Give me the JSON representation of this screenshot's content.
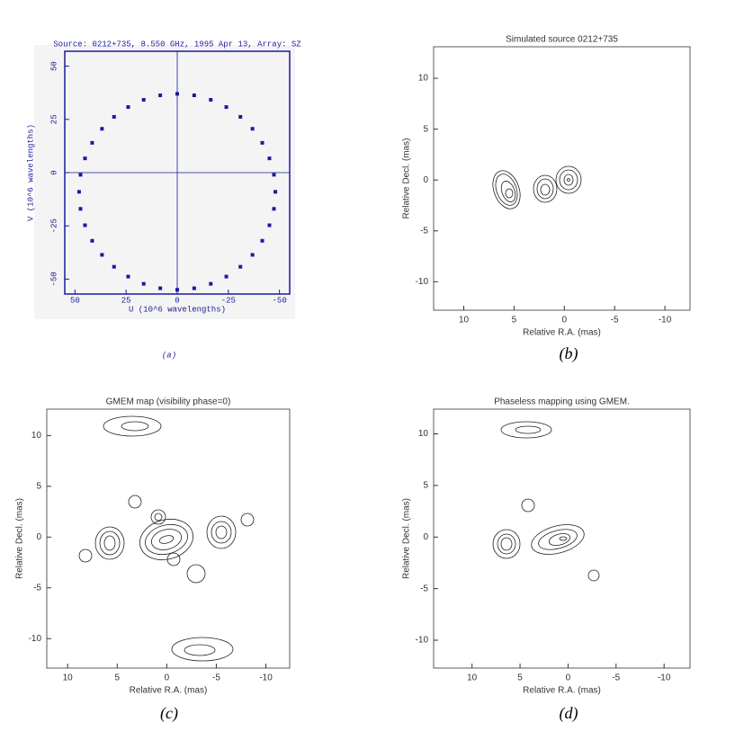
{
  "chart_data": [
    {
      "type": "scatter",
      "title": "Source: 0212+735, 8.550 GHz, 1995 Apr 13, Array: SZ",
      "x_label": "U (10^6 wavelengths)",
      "y_label": "V (10^6 wavelengths)",
      "caption": "(a)",
      "color": "#1a1aa0",
      "xlim": [
        55,
        -55
      ],
      "ylim": [
        -57,
        57
      ],
      "xticks": [
        50,
        25,
        0,
        -25,
        -50
      ],
      "yticks": [
        -50,
        -25,
        0,
        25,
        50
      ],
      "x": [
        48,
        47.3,
        45.1,
        41.6,
        36.8,
        30.9,
        24,
        16.4,
        8.3,
        0,
        -8.3,
        -16.4,
        -24,
        -30.9,
        -36.8,
        -41.6,
        -45.1,
        -47.3,
        -48,
        -47.3,
        -45.1,
        -41.6,
        -36.8,
        -30.9,
        -24,
        -16.4,
        -8.3,
        0,
        8.3,
        16.4,
        24,
        30.9,
        36.8,
        41.6,
        45.1,
        47.3
      ],
      "y": [
        -9,
        -1,
        6.7,
        14,
        20.6,
        26.2,
        30.8,
        34.2,
        36.3,
        37,
        36.3,
        34.2,
        30.8,
        26.2,
        20.6,
        14,
        6.7,
        -1,
        -9,
        -17,
        -24.7,
        -32,
        -38.6,
        -44.2,
        -48.8,
        -52.2,
        -54.3,
        -55,
        -54.3,
        -52.2,
        -48.8,
        -44.2,
        -38.6,
        -32,
        -24.7,
        -17
      ]
    },
    {
      "type": "contour",
      "title": "Simulated source 0212+735",
      "x_label": "Relative R.A. (mas)",
      "y_label": "Relative Decl. (mas)",
      "caption": "(b)",
      "xlim": [
        13,
        -12.5
      ],
      "ylim": [
        -12.8,
        13.1
      ],
      "xticks": [
        10,
        5,
        0,
        -5,
        -10
      ],
      "yticks": [
        -10,
        -5,
        0,
        5,
        10
      ]
    },
    {
      "type": "contour",
      "title": "GMEM map (visibility phase=0)",
      "x_label": "Relative R.A. (mas)",
      "y_label": "Relative Decl. (mas)",
      "caption": "(c)",
      "xlim": [
        12.1,
        -12.4
      ],
      "ylim": [
        -12.9,
        12.6
      ],
      "xticks": [
        10,
        5,
        0,
        -5,
        -10
      ],
      "yticks": [
        -10,
        -5,
        0,
        5,
        10
      ]
    },
    {
      "type": "contour",
      "title": "Phaseless mapping using GMEM.",
      "x_label": "Relative R.A. (mas)",
      "y_label": "Relative Decl. (mas)",
      "caption": "(d)",
      "xlim": [
        14,
        -12.7
      ],
      "ylim": [
        -12.7,
        12.4
      ],
      "xticks": [
        10,
        5,
        0,
        -5,
        -10
      ],
      "yticks": [
        -10,
        -5,
        0,
        5,
        10
      ]
    }
  ]
}
